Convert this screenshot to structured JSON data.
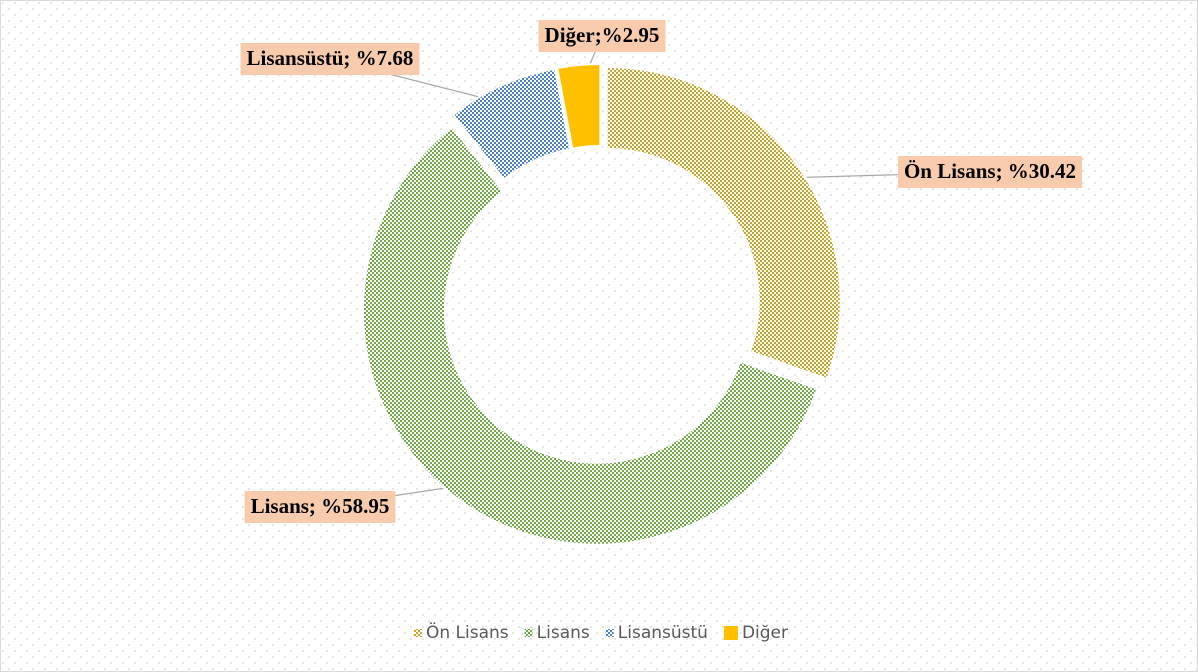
{
  "chart_data": {
    "type": "donut",
    "categories": [
      "Ön Lisans",
      "Lisans",
      "Lisansüstü",
      "Diğer"
    ],
    "values": [
      30.42,
      58.95,
      7.68,
      2.95
    ],
    "value_labels": [
      "Ön Lisans; %30.42",
      "Lisans; %58.95",
      "Lisansüstü; %7.68",
      "Diğer;%2.95"
    ],
    "colors": [
      "#c9a52a",
      "#6fa845",
      "#4a7fcb",
      "#ffc000"
    ],
    "fill_styles": [
      "checker",
      "checker",
      "checker",
      "solid"
    ],
    "legend": "bottom"
  }
}
